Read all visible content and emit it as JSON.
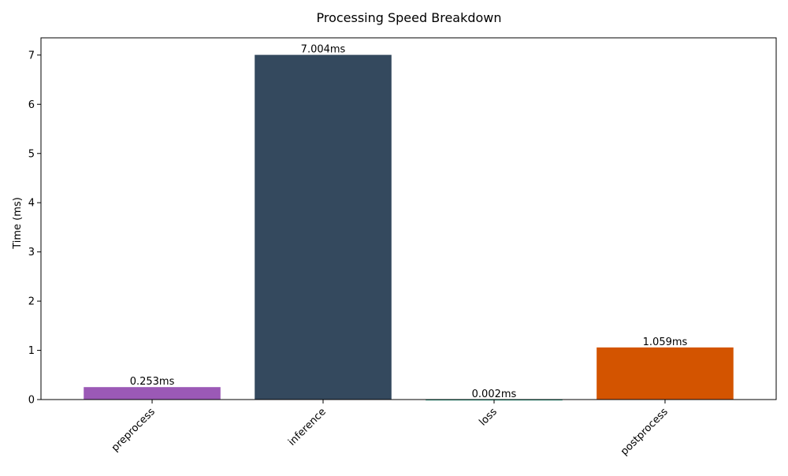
{
  "chart_data": {
    "type": "bar",
    "title": "Processing Speed Breakdown",
    "xlabel": "",
    "ylabel": "Time (ms)",
    "categories": [
      "preprocess",
      "inference",
      "loss",
      "postprocess"
    ],
    "values": [
      0.253,
      7.004,
      0.002,
      1.059
    ],
    "value_labels": [
      "0.253ms",
      "7.004ms",
      "0.002ms",
      "1.059ms"
    ],
    "colors": [
      "#9b59b6",
      "#34495e",
      "#16a085",
      "#d35400"
    ],
    "ylim": [
      0,
      7.35
    ],
    "yticks": [
      0,
      1,
      2,
      3,
      4,
      5,
      6,
      7
    ],
    "ytick_labels": [
      "0",
      "1",
      "2",
      "3",
      "4",
      "5",
      "6",
      "7"
    ],
    "xtick_rotation_deg": 45,
    "grid": false,
    "legend": "none"
  }
}
